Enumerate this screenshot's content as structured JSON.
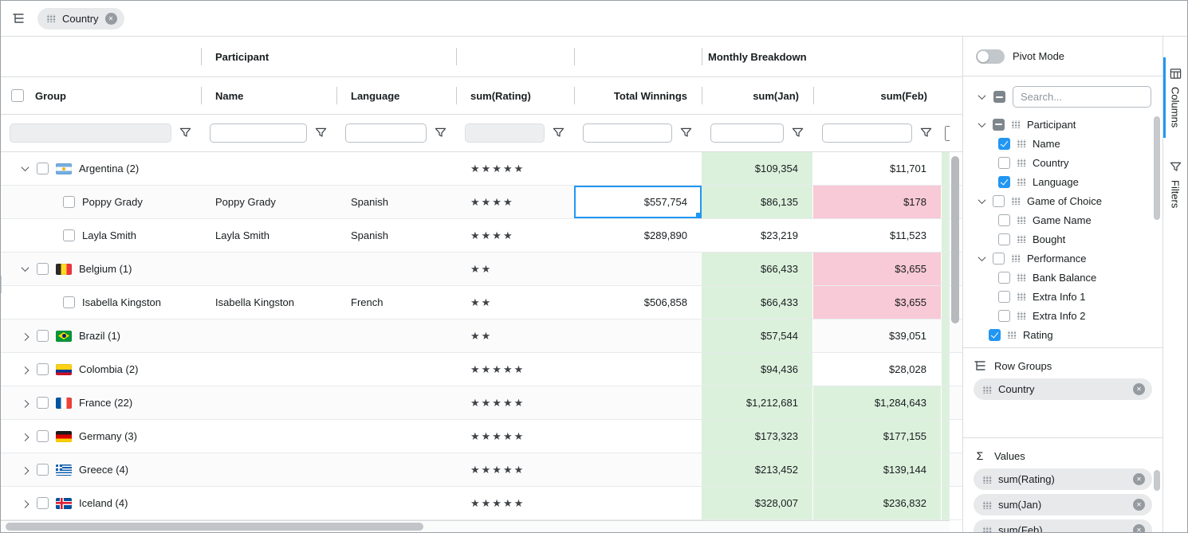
{
  "group_panel": {
    "chip": {
      "label": "Country"
    }
  },
  "grid": {
    "group_headers": {
      "participant": "Participant",
      "monthly_breakdown": "Monthly Breakdown"
    },
    "columns": [
      {
        "id": "group",
        "label": "Group",
        "filter": {
          "value": "",
          "disabled": true
        }
      },
      {
        "id": "name",
        "label": "Name",
        "filter": {
          "value": "",
          "disabled": false
        }
      },
      {
        "id": "language",
        "label": "Language",
        "filter": {
          "value": "",
          "disabled": false
        }
      },
      {
        "id": "sum_rating",
        "label": "sum(Rating)",
        "filter": {
          "value": "",
          "disabled": true
        }
      },
      {
        "id": "total_winnings",
        "label": "Total Winnings",
        "filter": {
          "value": "",
          "disabled": false
        }
      },
      {
        "id": "sum_jan",
        "label": "sum(Jan)",
        "filter": {
          "value": "",
          "disabled": false
        }
      },
      {
        "id": "sum_feb",
        "label": "sum(Feb)",
        "filter": {
          "value": "",
          "disabled": false
        }
      }
    ],
    "rows": [
      {
        "kind": "group",
        "expanded": true,
        "flag": "argentina",
        "label": "Argentina (2)",
        "rating_stars": 5,
        "total_winnings": "",
        "jan": "$109,354",
        "jan_highlight": "green",
        "feb": "$11,701",
        "feb_highlight": "none"
      },
      {
        "kind": "leaf",
        "name": "Poppy Grady",
        "language": "Spanish",
        "rating_stars": 4,
        "total_winnings": "$557,754",
        "winnings_selected": true,
        "jan": "$86,135",
        "jan_highlight": "green",
        "feb": "$178",
        "feb_highlight": "pink"
      },
      {
        "kind": "leaf",
        "name": "Layla Smith",
        "language": "Spanish",
        "rating_stars": 4,
        "total_winnings": "$289,890",
        "jan": "$23,219",
        "jan_highlight": "none",
        "feb": "$11,523",
        "feb_highlight": "none"
      },
      {
        "kind": "group",
        "expanded": true,
        "flag": "belgium",
        "label": "Belgium (1)",
        "rating_stars": 2,
        "total_winnings": "",
        "jan": "$66,433",
        "jan_highlight": "green",
        "feb": "$3,655",
        "feb_highlight": "pink"
      },
      {
        "kind": "leaf",
        "name": "Isabella Kingston",
        "language": "French",
        "rating_stars": 2,
        "total_winnings": "$506,858",
        "jan": "$66,433",
        "jan_highlight": "green",
        "feb": "$3,655",
        "feb_highlight": "pink"
      },
      {
        "kind": "group",
        "expanded": false,
        "flag": "brazil",
        "label": "Brazil (1)",
        "rating_stars": 2,
        "total_winnings": "",
        "jan": "$57,544",
        "jan_highlight": "green",
        "feb": "$39,051",
        "feb_highlight": "none"
      },
      {
        "kind": "group",
        "expanded": false,
        "flag": "colombia",
        "label": "Colombia (2)",
        "rating_stars": 5,
        "total_winnings": "",
        "jan": "$94,436",
        "jan_highlight": "green",
        "feb": "$28,028",
        "feb_highlight": "none"
      },
      {
        "kind": "group",
        "expanded": false,
        "flag": "france",
        "label": "France (22)",
        "rating_stars": 5,
        "total_winnings": "",
        "jan": "$1,212,681",
        "jan_highlight": "green",
        "feb": "$1,284,643",
        "feb_highlight": "green"
      },
      {
        "kind": "group",
        "expanded": false,
        "flag": "germany",
        "label": "Germany (3)",
        "rating_stars": 5,
        "total_winnings": "",
        "jan": "$173,323",
        "jan_highlight": "green",
        "feb": "$177,155",
        "feb_highlight": "green"
      },
      {
        "kind": "group",
        "expanded": false,
        "flag": "greece",
        "label": "Greece (4)",
        "rating_stars": 5,
        "total_winnings": "",
        "jan": "$213,452",
        "jan_highlight": "green",
        "feb": "$139,144",
        "feb_highlight": "green"
      },
      {
        "kind": "group",
        "expanded": false,
        "flag": "iceland",
        "label": "Iceland (4)",
        "rating_stars": 5,
        "total_winnings": "",
        "jan": "$328,007",
        "jan_highlight": "green",
        "feb": "$236,832",
        "feb_highlight": "green"
      }
    ]
  },
  "sidebar": {
    "pivot_label": "Pivot Mode",
    "pivot_on": false,
    "search_placeholder": "Search...",
    "columns_tree": [
      {
        "label": "Participant",
        "level": 0,
        "checkbox": "indeterminate",
        "expander": "down"
      },
      {
        "label": "Name",
        "level": 1,
        "checkbox": "checked"
      },
      {
        "label": "Country",
        "level": 1,
        "checkbox": "unchecked"
      },
      {
        "label": "Language",
        "level": 1,
        "checkbox": "checked"
      },
      {
        "label": "Game of Choice",
        "level": 0,
        "checkbox": "unchecked",
        "expander": "down"
      },
      {
        "label": "Game Name",
        "level": 1,
        "checkbox": "unchecked"
      },
      {
        "label": "Bought",
        "level": 1,
        "checkbox": "unchecked"
      },
      {
        "label": "Performance",
        "level": 0,
        "checkbox": "unchecked",
        "expander": "down"
      },
      {
        "label": "Bank Balance",
        "level": 1,
        "checkbox": "unchecked"
      },
      {
        "label": "Extra Info 1",
        "level": 1,
        "checkbox": "unchecked"
      },
      {
        "label": "Extra Info 2",
        "level": 1,
        "checkbox": "unchecked"
      },
      {
        "label": "Rating",
        "level": 0,
        "checkbox": "checked"
      }
    ],
    "row_groups": {
      "title": "Row Groups",
      "chips": [
        "Country"
      ]
    },
    "values": {
      "title": "Values",
      "chips": [
        "sum(Rating)",
        "sum(Jan)",
        "sum(Feb)"
      ]
    }
  },
  "side_tabs": [
    {
      "label": "Columns",
      "active": true
    },
    {
      "label": "Filters",
      "active": false
    }
  ],
  "icons": {
    "sigma": "Σ",
    "remove_glyph": "✕",
    "star": "★"
  },
  "colors": {
    "accent": "#2196f3",
    "highlight_green": "#dcf1dc",
    "highlight_pink": "#f8c9d6"
  }
}
